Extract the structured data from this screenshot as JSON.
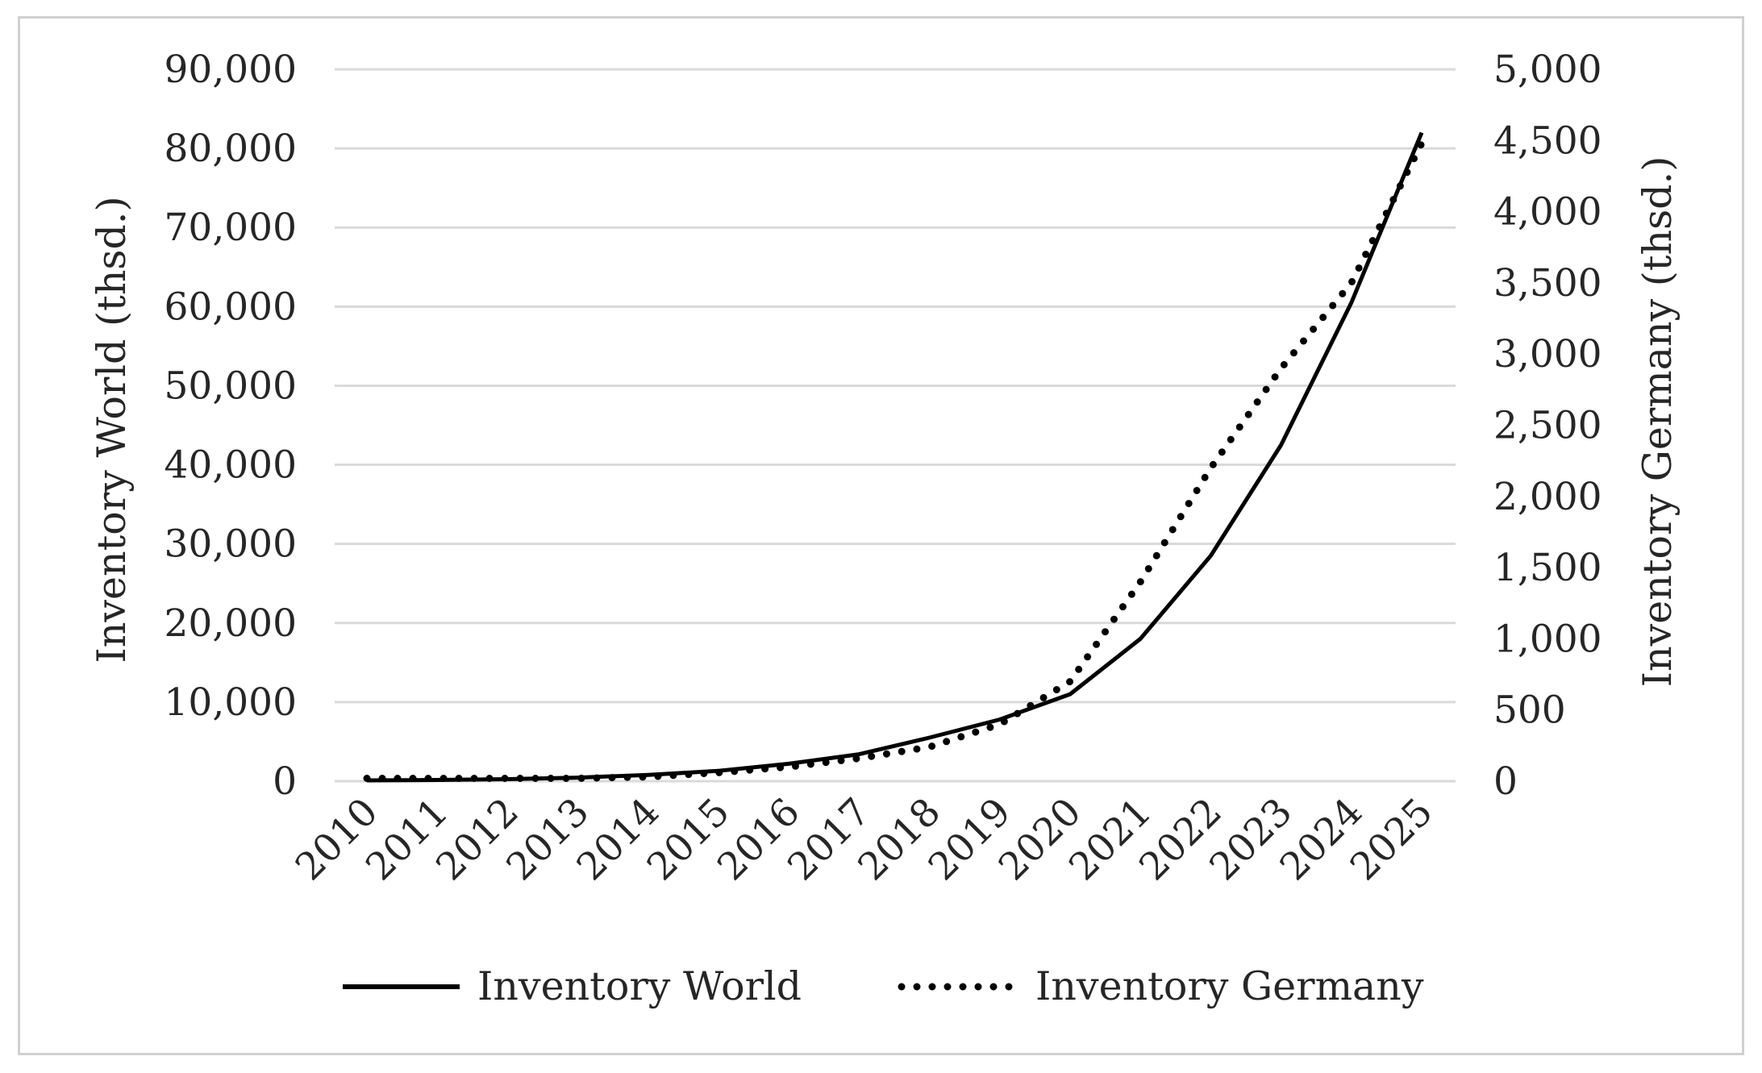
{
  "chart_data": {
    "type": "line",
    "x": [
      "2010",
      "2011",
      "2012",
      "2013",
      "2014",
      "2015",
      "2016",
      "2017",
      "2018",
      "2019",
      "2020",
      "2021",
      "2022",
      "2023",
      "2024",
      "2025"
    ],
    "series": [
      {
        "name": "Inventory World",
        "axis": "left",
        "style": "solid",
        "values": [
          100,
          150,
          250,
          450,
          800,
          1300,
          2200,
          3400,
          5500,
          7800,
          11000,
          18000,
          28500,
          42500,
          60500,
          82000
        ]
      },
      {
        "name": "Inventory Germany",
        "axis": "right",
        "style": "dotted",
        "values": [
          20,
          20,
          20,
          20,
          30,
          60,
          100,
          160,
          240,
          400,
          700,
          1400,
          2200,
          2900,
          3500,
          4480
        ]
      }
    ],
    "ylabel": "Inventory World (thsd.)",
    "ylabel_right": "Inventory Germany (thsd.)",
    "ylim": [
      0,
      90000
    ],
    "ylim_right": [
      0,
      5000
    ],
    "yticks": [
      "0",
      "10,000",
      "20,000",
      "30,000",
      "40,000",
      "50,000",
      "60,000",
      "70,000",
      "80,000",
      "90,000"
    ],
    "yticks_right": [
      "0",
      "500",
      "1,000",
      "1,500",
      "2,000",
      "2,500",
      "3,000",
      "3,500",
      "4,000",
      "4,500",
      "5,000"
    ],
    "grid": true,
    "legend": "bottom",
    "line_color": "#000000",
    "grid_color": "#d9d9d9"
  }
}
